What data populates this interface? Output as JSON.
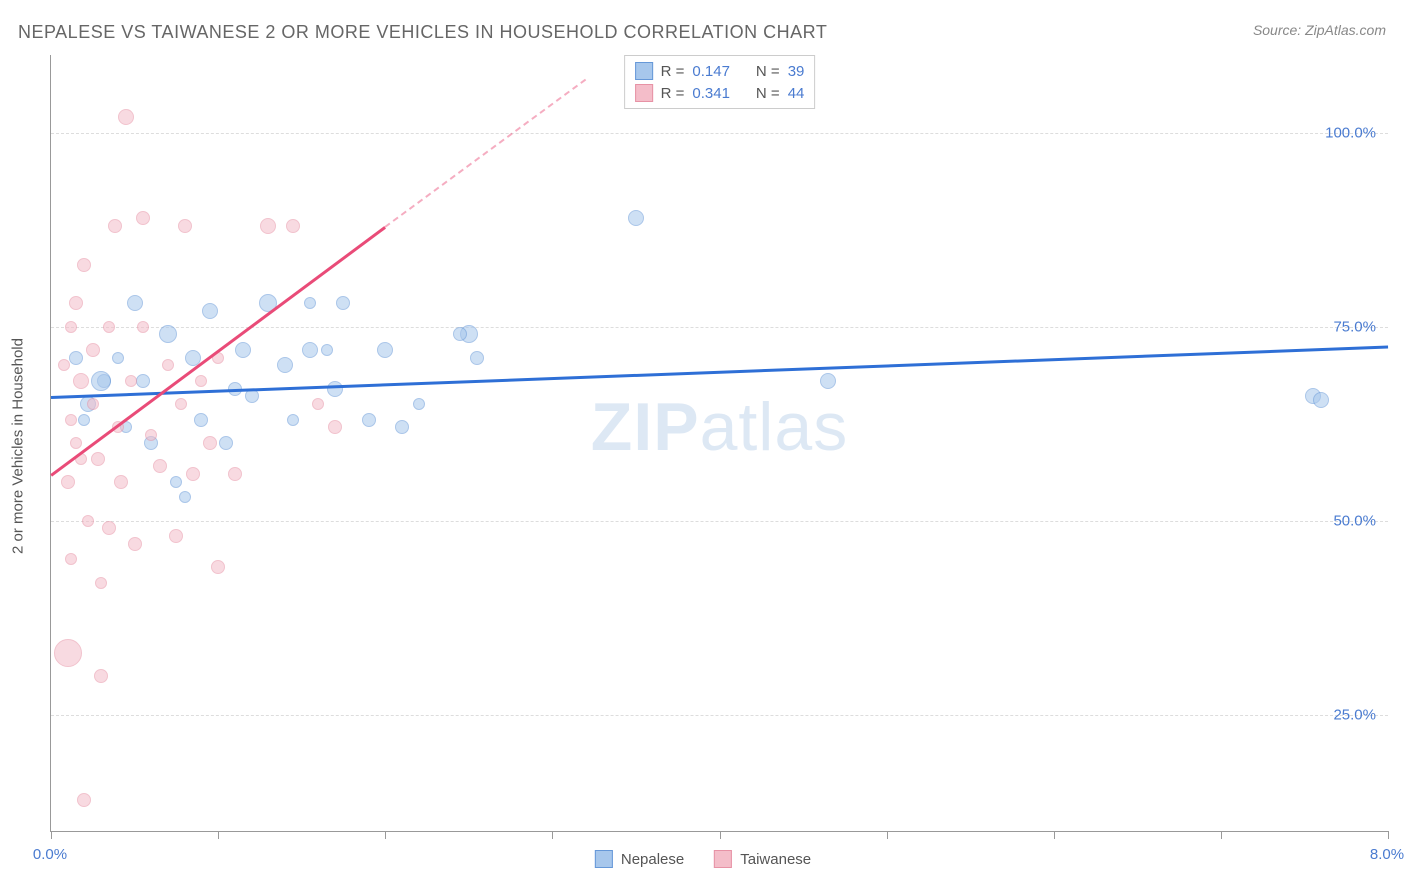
{
  "title": "NEPALESE VS TAIWANESE 2 OR MORE VEHICLES IN HOUSEHOLD CORRELATION CHART",
  "source": "Source: ZipAtlas.com",
  "watermark_a": "ZIP",
  "watermark_b": "atlas",
  "chart": {
    "type": "scatter",
    "background_color": "#ffffff",
    "grid_color": "#dddddd",
    "border_color": "#999999",
    "xlim": [
      0.0,
      8.0
    ],
    "ylim": [
      10.0,
      110.0
    ],
    "x_ticks": [
      0.0,
      1.0,
      2.0,
      3.0,
      4.0,
      5.0,
      6.0,
      7.0,
      8.0
    ],
    "x_tick_labels": {
      "first": "0.0%",
      "last": "8.0%"
    },
    "y_gridlines": [
      25.0,
      50.0,
      75.0,
      100.0
    ],
    "y_tick_labels": [
      "25.0%",
      "50.0%",
      "75.0%",
      "100.0%"
    ],
    "ylabel": "2 or more Vehicles in Household",
    "title_fontsize": 18,
    "label_fontsize": 15,
    "tick_label_color": "#4a7bd0",
    "series": [
      {
        "name": "Nepalese",
        "fill_color": "#a7c7ec",
        "stroke_color": "#6698d8",
        "fill_opacity": 0.55,
        "line_color": "#2e6fd6",
        "line_width": 2.5,
        "R": 0.147,
        "N": 39,
        "regression": {
          "x1": 0.0,
          "y1": 66.0,
          "x2": 8.0,
          "y2": 72.5
        },
        "points": [
          {
            "x": 0.22,
            "y": 65,
            "r": 8
          },
          {
            "x": 0.32,
            "y": 68,
            "r": 7
          },
          {
            "x": 0.45,
            "y": 62,
            "r": 6
          },
          {
            "x": 0.5,
            "y": 78,
            "r": 8
          },
          {
            "x": 0.6,
            "y": 60,
            "r": 7
          },
          {
            "x": 0.7,
            "y": 74,
            "r": 9
          },
          {
            "x": 0.75,
            "y": 55,
            "r": 6
          },
          {
            "x": 0.85,
            "y": 71,
            "r": 8
          },
          {
            "x": 0.9,
            "y": 63,
            "r": 7
          },
          {
            "x": 0.95,
            "y": 77,
            "r": 8
          },
          {
            "x": 1.05,
            "y": 60,
            "r": 7
          },
          {
            "x": 1.15,
            "y": 72,
            "r": 8
          },
          {
            "x": 1.2,
            "y": 66,
            "r": 7
          },
          {
            "x": 1.3,
            "y": 78,
            "r": 9
          },
          {
            "x": 1.4,
            "y": 70,
            "r": 8
          },
          {
            "x": 1.45,
            "y": 63,
            "r": 6
          },
          {
            "x": 1.55,
            "y": 72,
            "r": 8
          },
          {
            "x": 1.55,
            "y": 78,
            "r": 6
          },
          {
            "x": 1.7,
            "y": 67,
            "r": 8
          },
          {
            "x": 1.75,
            "y": 78,
            "r": 7
          },
          {
            "x": 1.9,
            "y": 63,
            "r": 7
          },
          {
            "x": 2.0,
            "y": 72,
            "r": 8
          },
          {
            "x": 2.1,
            "y": 62,
            "r": 7
          },
          {
            "x": 2.2,
            "y": 65,
            "r": 6
          },
          {
            "x": 2.5,
            "y": 74,
            "r": 9
          },
          {
            "x": 2.55,
            "y": 71,
            "r": 7
          },
          {
            "x": 0.3,
            "y": 68,
            "r": 10
          },
          {
            "x": 0.15,
            "y": 71,
            "r": 7
          },
          {
            "x": 0.2,
            "y": 63,
            "r": 6
          },
          {
            "x": 0.55,
            "y": 68,
            "r": 7
          },
          {
            "x": 0.4,
            "y": 71,
            "r": 6
          },
          {
            "x": 1.65,
            "y": 72,
            "r": 6
          },
          {
            "x": 3.5,
            "y": 89,
            "r": 8
          },
          {
            "x": 2.45,
            "y": 74,
            "r": 7
          },
          {
            "x": 4.65,
            "y": 68,
            "r": 8
          },
          {
            "x": 0.8,
            "y": 53,
            "r": 6
          },
          {
            "x": 7.55,
            "y": 66,
            "r": 8
          },
          {
            "x": 7.6,
            "y": 65.5,
            "r": 8
          },
          {
            "x": 1.1,
            "y": 67,
            "r": 7
          }
        ]
      },
      {
        "name": "Taiwanese",
        "fill_color": "#f4bdc9",
        "stroke_color": "#e792a5",
        "fill_opacity": 0.55,
        "line_color": "#e94b78",
        "line_width": 2.5,
        "R": 0.341,
        "N": 44,
        "regression_solid": {
          "x1": 0.0,
          "y1": 56.0,
          "x2": 2.0,
          "y2": 88.0
        },
        "regression_dash": {
          "x1": 2.0,
          "y1": 88.0,
          "x2": 3.2,
          "y2": 107.0
        },
        "points": [
          {
            "x": 0.08,
            "y": 70,
            "r": 6
          },
          {
            "x": 0.1,
            "y": 55,
            "r": 7
          },
          {
            "x": 0.12,
            "y": 45,
            "r": 6
          },
          {
            "x": 0.15,
            "y": 78,
            "r": 7
          },
          {
            "x": 0.15,
            "y": 60,
            "r": 6
          },
          {
            "x": 0.18,
            "y": 68,
            "r": 8
          },
          {
            "x": 0.2,
            "y": 83,
            "r": 7
          },
          {
            "x": 0.22,
            "y": 50,
            "r": 6
          },
          {
            "x": 0.25,
            "y": 72,
            "r": 7
          },
          {
            "x": 0.25,
            "y": 65,
            "r": 6
          },
          {
            "x": 0.28,
            "y": 58,
            "r": 7
          },
          {
            "x": 0.3,
            "y": 42,
            "r": 6
          },
          {
            "x": 0.1,
            "y": 33,
            "r": 14
          },
          {
            "x": 0.3,
            "y": 30,
            "r": 7
          },
          {
            "x": 0.35,
            "y": 75,
            "r": 6
          },
          {
            "x": 0.38,
            "y": 88,
            "r": 7
          },
          {
            "x": 0.4,
            "y": 62,
            "r": 6
          },
          {
            "x": 0.42,
            "y": 55,
            "r": 7
          },
          {
            "x": 0.45,
            "y": 102,
            "r": 8
          },
          {
            "x": 0.48,
            "y": 68,
            "r": 6
          },
          {
            "x": 0.5,
            "y": 47,
            "r": 7
          },
          {
            "x": 0.55,
            "y": 75,
            "r": 6
          },
          {
            "x": 0.55,
            "y": 89,
            "r": 7
          },
          {
            "x": 0.6,
            "y": 61,
            "r": 6
          },
          {
            "x": 0.65,
            "y": 57,
            "r": 7
          },
          {
            "x": 0.7,
            "y": 70,
            "r": 6
          },
          {
            "x": 0.75,
            "y": 48,
            "r": 7
          },
          {
            "x": 0.78,
            "y": 65,
            "r": 6
          },
          {
            "x": 0.8,
            "y": 88,
            "r": 7
          },
          {
            "x": 0.85,
            "y": 56,
            "r": 7
          },
          {
            "x": 0.9,
            "y": 68,
            "r": 6
          },
          {
            "x": 0.95,
            "y": 60,
            "r": 7
          },
          {
            "x": 1.0,
            "y": 44,
            "r": 7
          },
          {
            "x": 1.0,
            "y": 71,
            "r": 6
          },
          {
            "x": 1.1,
            "y": 56,
            "r": 7
          },
          {
            "x": 1.3,
            "y": 88,
            "r": 8
          },
          {
            "x": 1.45,
            "y": 88,
            "r": 7
          },
          {
            "x": 0.2,
            "y": 14,
            "r": 7
          },
          {
            "x": 1.6,
            "y": 65,
            "r": 6
          },
          {
            "x": 1.7,
            "y": 62,
            "r": 7
          },
          {
            "x": 0.12,
            "y": 63,
            "r": 6
          },
          {
            "x": 0.18,
            "y": 58,
            "r": 6
          },
          {
            "x": 0.35,
            "y": 49,
            "r": 7
          },
          {
            "x": 0.12,
            "y": 75,
            "r": 6
          }
        ]
      }
    ],
    "legend_top": {
      "rows": [
        {
          "swatch_fill": "#a7c7ec",
          "swatch_stroke": "#6698d8",
          "r_label": "R =",
          "r_val": "0.147",
          "n_label": "N =",
          "n_val": "39"
        },
        {
          "swatch_fill": "#f4bdc9",
          "swatch_stroke": "#e792a5",
          "r_label": "R =",
          "r_val": "0.341",
          "n_label": "N =",
          "n_val": "44"
        }
      ]
    },
    "legend_bottom": [
      {
        "swatch_fill": "#a7c7ec",
        "swatch_stroke": "#6698d8",
        "label": "Nepalese"
      },
      {
        "swatch_fill": "#f4bdc9",
        "swatch_stroke": "#e792a5",
        "label": "Taiwanese"
      }
    ]
  }
}
